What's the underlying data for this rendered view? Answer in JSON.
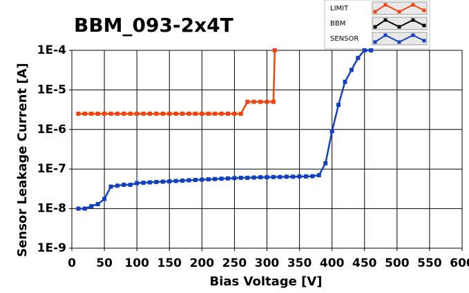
{
  "chart_data": {
    "type": "line",
    "title": "BBM_093-2x4T",
    "x_label": "Bias Voltage [V]",
    "y_label": "Sensor Leakage Current [A]",
    "xlim": [
      0,
      600
    ],
    "xticks": [
      0,
      50,
      100,
      150,
      200,
      250,
      300,
      350,
      400,
      450,
      500,
      550,
      600
    ],
    "ylim": [
      1e-09,
      0.0001
    ],
    "log_y": true,
    "yticks": [
      {
        "value": 0.0001,
        "label": "1E-4"
      },
      {
        "value": 1e-05,
        "label": "1E-5"
      },
      {
        "value": 1e-06,
        "label": "1E-6"
      },
      {
        "value": 1e-07,
        "label": "1E-7"
      },
      {
        "value": 1e-08,
        "label": "1E-8"
      },
      {
        "value": 1e-09,
        "label": "1E-9"
      }
    ],
    "grid": true,
    "legend_position": "top-right",
    "series": [
      {
        "name": "LIMIT",
        "color": "#ee4411",
        "x": [
          10,
          20,
          30,
          40,
          50,
          60,
          70,
          80,
          90,
          100,
          110,
          120,
          130,
          140,
          150,
          160,
          170,
          180,
          190,
          200,
          210,
          220,
          230,
          240,
          250,
          260,
          270,
          280,
          290,
          300,
          310,
          312
        ],
        "values": [
          2.5e-06,
          2.5e-06,
          2.5e-06,
          2.5e-06,
          2.5e-06,
          2.5e-06,
          2.5e-06,
          2.5e-06,
          2.5e-06,
          2.5e-06,
          2.5e-06,
          2.5e-06,
          2.5e-06,
          2.5e-06,
          2.5e-06,
          2.5e-06,
          2.5e-06,
          2.5e-06,
          2.5e-06,
          2.5e-06,
          2.5e-06,
          2.5e-06,
          2.5e-06,
          2.5e-06,
          2.5e-06,
          2.5e-06,
          5e-06,
          5e-06,
          5e-06,
          5e-06,
          5e-06,
          0.0001
        ]
      },
      {
        "name": "BBM",
        "color": "#000000",
        "x": [],
        "values": []
      },
      {
        "name": "SENSOR",
        "color": "#1040c0",
        "x": [
          10,
          20,
          30,
          40,
          50,
          60,
          70,
          80,
          90,
          100,
          110,
          120,
          130,
          140,
          150,
          160,
          170,
          180,
          190,
          200,
          210,
          220,
          230,
          240,
          250,
          260,
          270,
          280,
          290,
          300,
          310,
          320,
          330,
          340,
          350,
          360,
          370,
          380,
          390,
          400,
          410,
          420,
          430,
          440,
          450,
          460
        ],
        "values": [
          1e-08,
          1e-08,
          1.15e-08,
          1.3e-08,
          1.75e-08,
          3.6e-08,
          3.8e-08,
          4e-08,
          4e-08,
          4.4e-08,
          4.5e-08,
          4.6e-08,
          4.7e-08,
          4.8e-08,
          4.9e-08,
          5e-08,
          5.1e-08,
          5.2e-08,
          5.3e-08,
          5.4e-08,
          5.5e-08,
          5.6e-08,
          5.7e-08,
          5.8e-08,
          5.9e-08,
          6e-08,
          6e-08,
          6.1e-08,
          6.2e-08,
          6.2e-08,
          6.3e-08,
          6.3e-08,
          6.4e-08,
          6.4e-08,
          6.5e-08,
          6.5e-08,
          6.6e-08,
          7e-08,
          1.4e-07,
          9e-07,
          4.2e-06,
          1.6e-05,
          3.2e-05,
          6.4e-05,
          0.0001,
          0.0001
        ]
      }
    ]
  }
}
